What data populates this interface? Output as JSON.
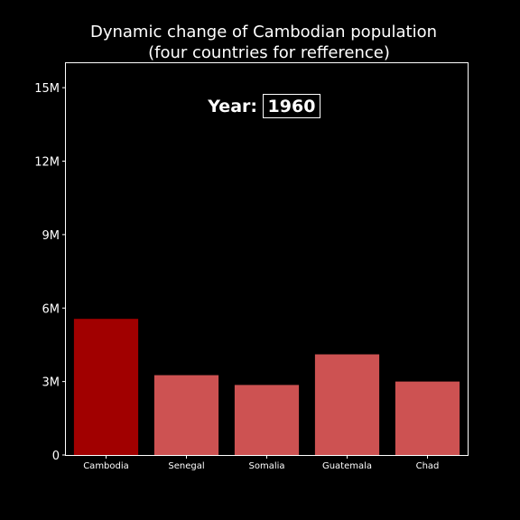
{
  "chart_data": {
    "type": "bar",
    "title": [
      "Dynamic change of Cambodian population",
      "(four countries for refference)"
    ],
    "year_label": "Year:",
    "year_value": "1960",
    "categories": [
      "Cambodia",
      "Senegal",
      "Somalia",
      "Guatemala",
      "Chad"
    ],
    "values": [
      5560000,
      3260000,
      2860000,
      4110000,
      3000000
    ],
    "highlight": "Cambodia",
    "ylim": [
      0,
      16000000
    ],
    "yticks": [
      0,
      3000000,
      6000000,
      9000000,
      12000000,
      15000000
    ],
    "ytick_labels": [
      "0",
      "3M",
      "6M",
      "9M",
      "12M",
      "15M"
    ],
    "xlabel": "",
    "ylabel": "",
    "grid": false,
    "colors": {
      "background": "#000000",
      "highlight_bar": "#a10000",
      "bar": "#cd5252",
      "axes": "#ffffff",
      "text": "#ffffff"
    }
  }
}
